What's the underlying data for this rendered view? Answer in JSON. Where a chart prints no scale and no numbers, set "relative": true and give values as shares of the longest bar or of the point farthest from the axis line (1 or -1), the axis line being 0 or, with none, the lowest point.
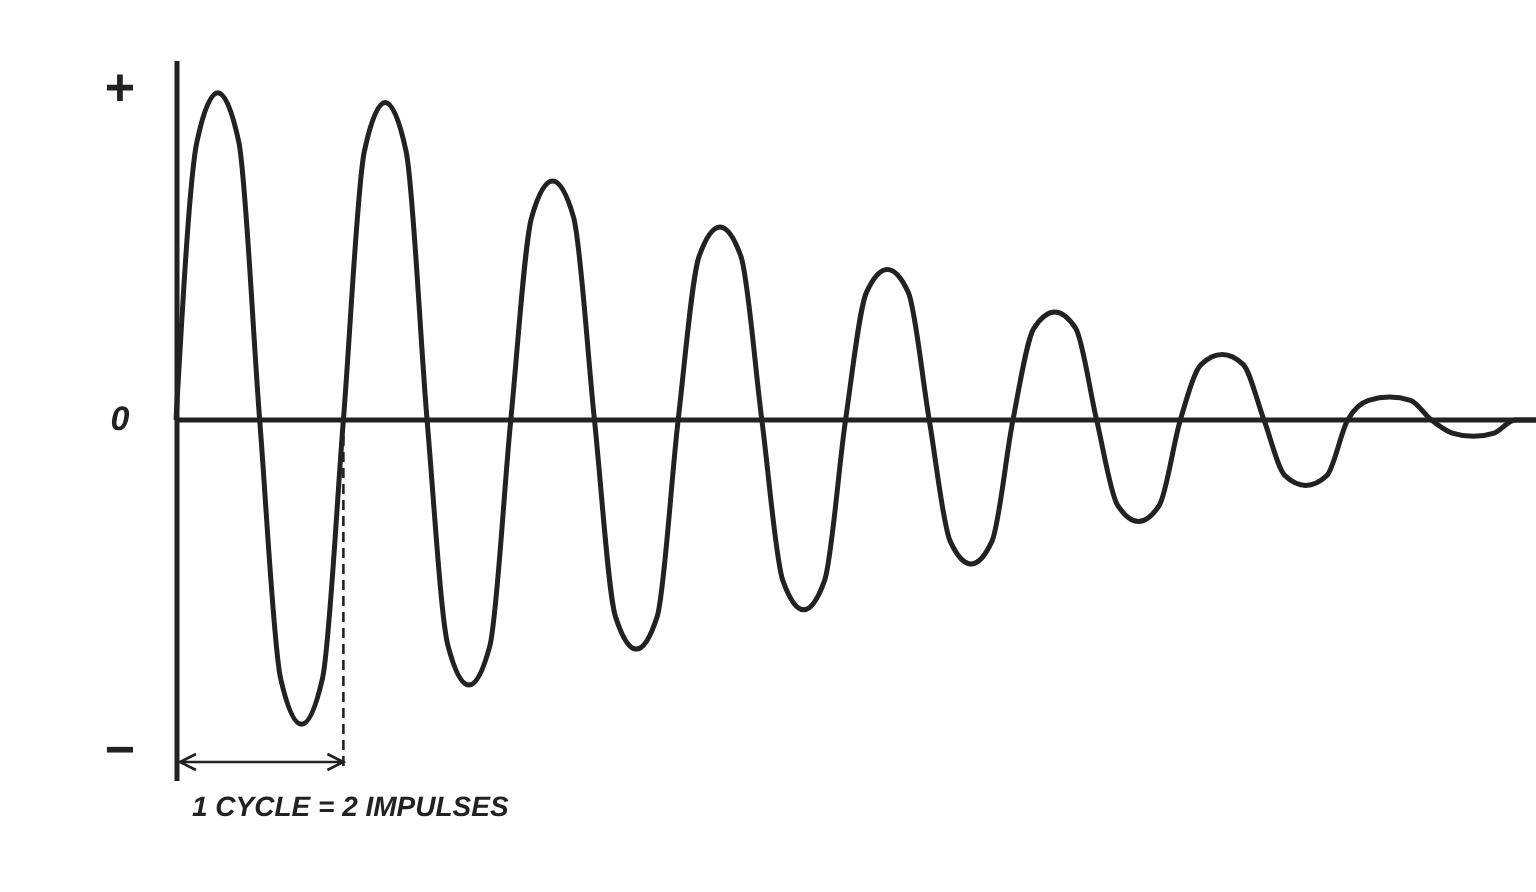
{
  "chart_data": {
    "type": "line",
    "relative": true,
    "grid": false,
    "marker": "none",
    "line_style": "solid",
    "categories": [
      null,
      null,
      null,
      null,
      null,
      null,
      null,
      null,
      null,
      null,
      null,
      null,
      null,
      null,
      null,
      null,
      null,
      null,
      null,
      null,
      null,
      null,
      null,
      null,
      null,
      null,
      null,
      null,
      null,
      null,
      null,
      null,
      null,
      null,
      null,
      null,
      null,
      null,
      null,
      null,
      null,
      null,
      null,
      null,
      null,
      null,
      null,
      null,
      null,
      null,
      null,
      null,
      null,
      null,
      null,
      null,
      null,
      null,
      null,
      null,
      null,
      null,
      null,
      null,
      null,
      null
    ],
    "series": [
      {
        "color": "#222222",
        "values": [
          0,
          0.85,
          1,
          0.85,
          0,
          -0.79,
          -0.93,
          -0.79,
          0,
          0.82,
          0.97,
          0.82,
          0,
          -0.69,
          -0.81,
          -0.69,
          0,
          0.62,
          0.73,
          0.62,
          0,
          -0.6,
          -0.7,
          -0.6,
          0,
          0.5,
          0.59,
          0.5,
          0,
          -0.49,
          -0.58,
          -0.49,
          0,
          0.39,
          0.46,
          0.39,
          0,
          -0.37,
          -0.44,
          -0.37,
          0,
          0.28,
          0.33,
          0.28,
          0,
          -0.26,
          -0.31,
          -0.26,
          0,
          0.17,
          0.2,
          0.17,
          0,
          -0.17,
          -0.2,
          -0.17,
          0,
          0.06,
          0.07,
          0.06,
          0,
          -0.04,
          -0.05,
          -0.04,
          0,
          0
        ]
      }
    ],
    "annotations": [
      "+",
      "0",
      "−",
      "1 CYCLE = 2 IMPULSES"
    ]
  }
}
